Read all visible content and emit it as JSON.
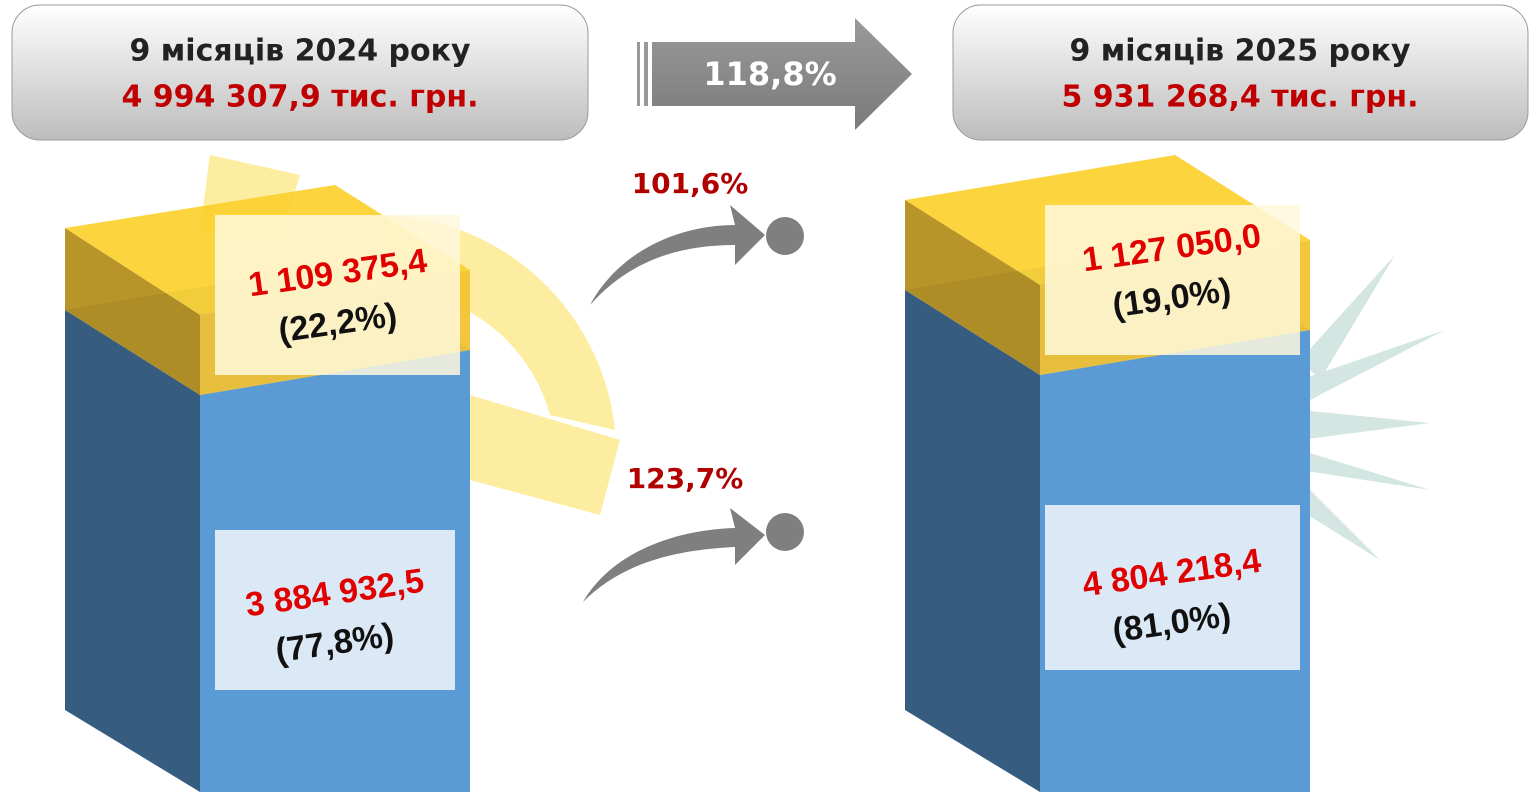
{
  "periods": [
    {
      "title": "9 місяців 2024 року",
      "total": "4 994 307,9 тис. грн.",
      "top": {
        "value": "1 109 375,4",
        "share": "(22,2%)"
      },
      "bottom": {
        "value": "3 884 932,5",
        "share": "(77,8%)"
      }
    },
    {
      "title": "9 місяців 2025 року",
      "total": "5 931 268,4 тис. грн.",
      "top": {
        "value": "1 127 050,0",
        "share": "(19,0%)"
      },
      "bottom": {
        "value": "4 804 218,4",
        "share": "(81,0%)"
      }
    }
  ],
  "growth": {
    "total": "118,8%",
    "top": "101,6%",
    "bottom": "123,7%"
  }
}
